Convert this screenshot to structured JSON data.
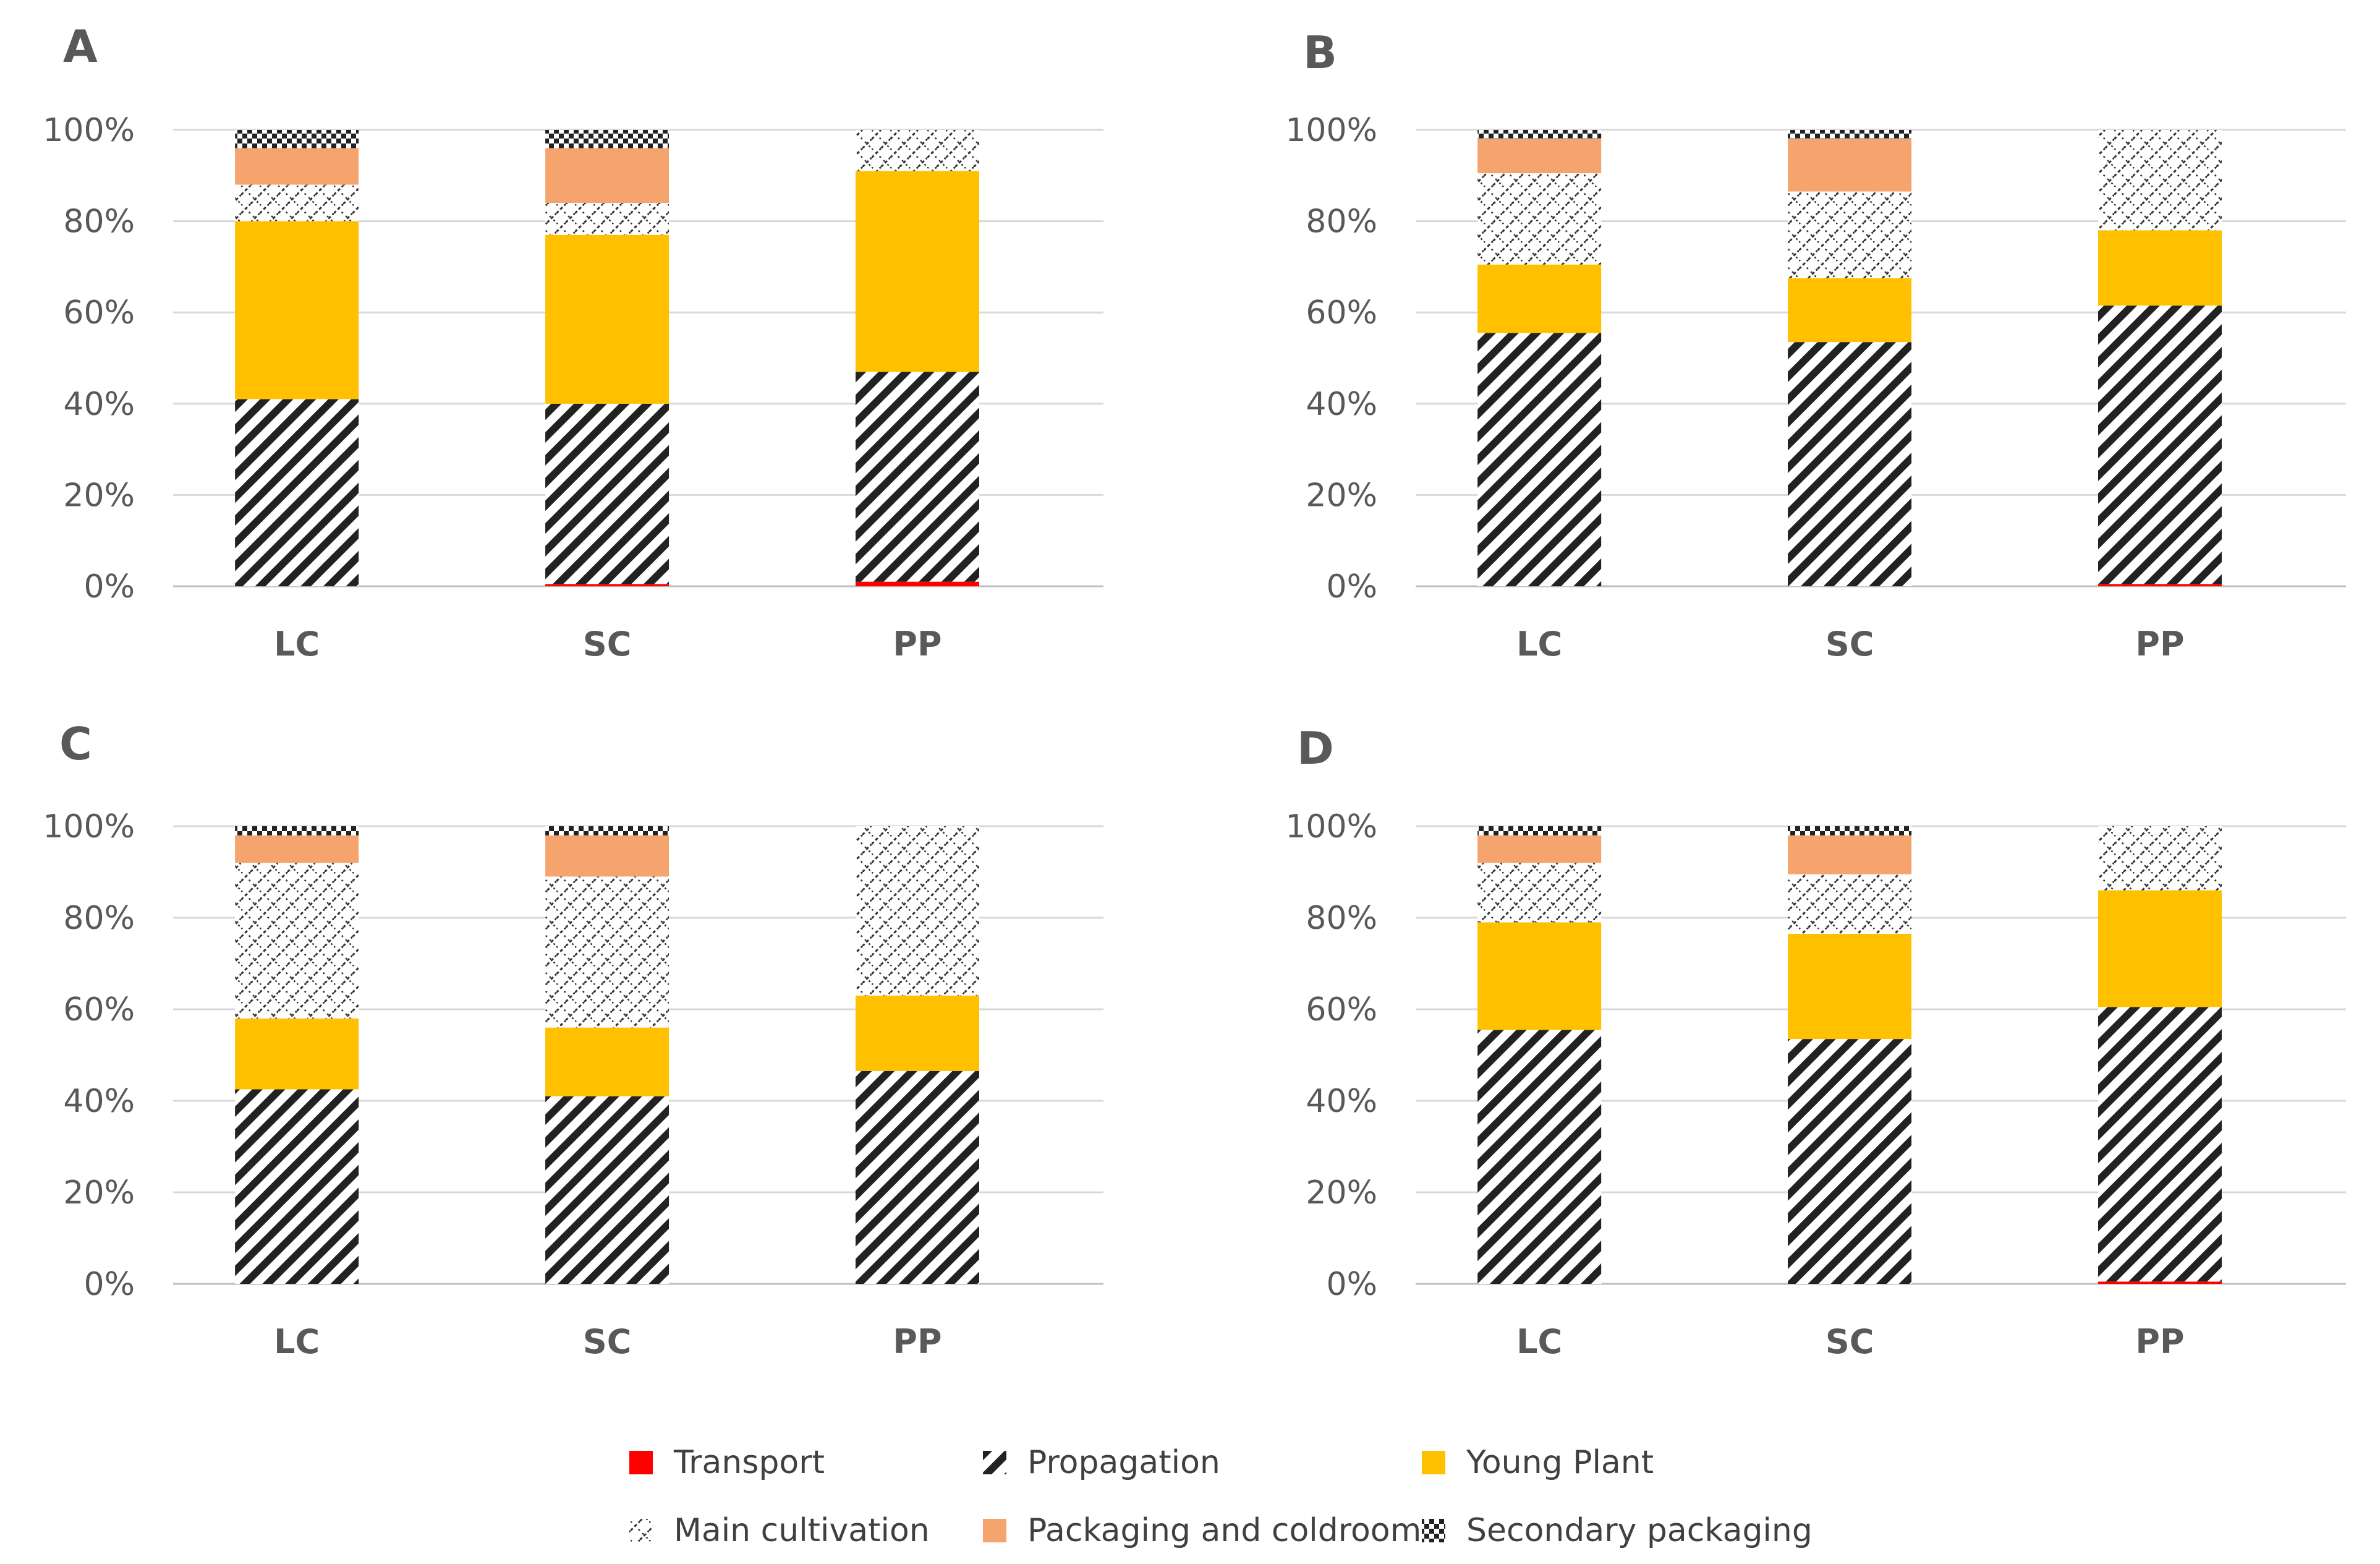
{
  "colors": {
    "transport": "#ff0000",
    "propagation": "#222222",
    "young_plant": "#ffc000",
    "main_cultivation": "#333333",
    "packaging": "#f4a46c",
    "secondary": "#222222",
    "grid": "#d9d9d9",
    "text": "#595959"
  },
  "legend": [
    {
      "key": "transport",
      "label": "Transport"
    },
    {
      "key": "propagation",
      "label": "Propagation"
    },
    {
      "key": "young_plant",
      "label": "Young Plant"
    },
    {
      "key": "main_cultivation",
      "label": "Main cultivation"
    },
    {
      "key": "packaging",
      "label": "Packaging and coldroom"
    },
    {
      "key": "secondary",
      "label": "Secondary packaging"
    }
  ],
  "y_ticks": [
    "0%",
    "20%",
    "40%",
    "60%",
    "80%",
    "100%"
  ],
  "chart_data": [
    {
      "panel": "A",
      "type": "bar",
      "stacked": true,
      "categories": [
        "LC",
        "SC",
        "PP"
      ],
      "ylim": [
        0,
        100
      ],
      "series": [
        {
          "key": "transport",
          "name": "Transport",
          "values": [
            0,
            0.5,
            1
          ]
        },
        {
          "key": "propagation",
          "name": "Propagation",
          "values": [
            41,
            39.5,
            46
          ]
        },
        {
          "key": "young_plant",
          "name": "Young Plant",
          "values": [
            39,
            37,
            44
          ]
        },
        {
          "key": "main_cultivation",
          "name": "Main cultivation",
          "values": [
            8,
            7,
            9
          ]
        },
        {
          "key": "packaging",
          "name": "Packaging and coldroom",
          "values": [
            8,
            12,
            0
          ]
        },
        {
          "key": "secondary",
          "name": "Secondary packaging",
          "values": [
            4,
            4,
            0
          ]
        }
      ]
    },
    {
      "panel": "B",
      "type": "bar",
      "stacked": true,
      "categories": [
        "LC",
        "SC",
        "PP"
      ],
      "ylim": [
        0,
        100
      ],
      "series": [
        {
          "key": "transport",
          "name": "Transport",
          "values": [
            0,
            0,
            0.5
          ]
        },
        {
          "key": "propagation",
          "name": "Propagation",
          "values": [
            55.5,
            53.5,
            61
          ]
        },
        {
          "key": "young_plant",
          "name": "Young Plant",
          "values": [
            15,
            14,
            16.5
          ]
        },
        {
          "key": "main_cultivation",
          "name": "Main cultivation",
          "values": [
            20,
            19,
            22
          ]
        },
        {
          "key": "packaging",
          "name": "Packaging and coldroom",
          "values": [
            7.5,
            11.5,
            0
          ]
        },
        {
          "key": "secondary",
          "name": "Secondary packaging",
          "values": [
            2,
            2,
            0
          ]
        }
      ]
    },
    {
      "panel": "C",
      "type": "bar",
      "stacked": true,
      "categories": [
        "LC",
        "SC",
        "PP"
      ],
      "ylim": [
        0,
        100
      ],
      "series": [
        {
          "key": "transport",
          "name": "Transport",
          "values": [
            0,
            0,
            0
          ]
        },
        {
          "key": "propagation",
          "name": "Propagation",
          "values": [
            42.5,
            41,
            46.5
          ]
        },
        {
          "key": "young_plant",
          "name": "Young Plant",
          "values": [
            15.5,
            15,
            16.5
          ]
        },
        {
          "key": "main_cultivation",
          "name": "Main cultivation",
          "values": [
            34,
            33,
            37
          ]
        },
        {
          "key": "packaging",
          "name": "Packaging and coldroom",
          "values": [
            6,
            9,
            0
          ]
        },
        {
          "key": "secondary",
          "name": "Secondary packaging",
          "values": [
            2,
            2,
            0
          ]
        }
      ]
    },
    {
      "panel": "D",
      "type": "bar",
      "stacked": true,
      "categories": [
        "LC",
        "SC",
        "PP"
      ],
      "ylim": [
        0,
        100
      ],
      "series": [
        {
          "key": "transport",
          "name": "Transport",
          "values": [
            0,
            0,
            0.5
          ]
        },
        {
          "key": "propagation",
          "name": "Propagation",
          "values": [
            55.5,
            53.5,
            60
          ]
        },
        {
          "key": "young_plant",
          "name": "Young Plant",
          "values": [
            23.5,
            23,
            25.5
          ]
        },
        {
          "key": "main_cultivation",
          "name": "Main cultivation",
          "values": [
            13,
            13,
            14
          ]
        },
        {
          "key": "packaging",
          "name": "Packaging and coldroom",
          "values": [
            6,
            8.5,
            0
          ]
        },
        {
          "key": "secondary",
          "name": "Secondary packaging",
          "values": [
            2,
            2,
            0
          ]
        }
      ]
    }
  ]
}
